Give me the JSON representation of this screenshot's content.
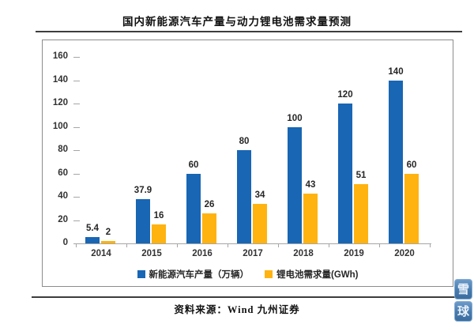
{
  "title": "国内新能源汽车产量与动力锂电池需求量预测",
  "source": "资料来源：Wind  九州证券",
  "watermark": {
    "top_char": "雪",
    "bottom_char": "球"
  },
  "colors": {
    "vehicle_bar": "#1866b4",
    "battery_bar": "#ffb310",
    "axis": "#a6a6a6",
    "frame_border": "#8c8c8c",
    "rule": "#3d3d3d",
    "watermark_blue": "#477aad"
  },
  "chart_data": {
    "type": "bar",
    "title": "国内新能源汽车产量与动力锂电池需求量预测",
    "categories": [
      "2014",
      "2015",
      "2016",
      "2017",
      "2018",
      "2019",
      "2020"
    ],
    "series": [
      {
        "name": "新能源汽车产量（万辆）",
        "color": "#1866b4",
        "values": [
          5.4,
          37.9,
          60,
          80,
          100,
          120,
          140
        ]
      },
      {
        "name": "锂电池需求量(GWh)",
        "color": "#ffb310",
        "values": [
          2,
          16,
          26,
          34,
          43,
          51,
          60
        ]
      }
    ],
    "ylim": [
      0,
      160
    ],
    "ytick_step": 20,
    "grid": false,
    "data_labels": true,
    "legend_position": "bottom",
    "xlabel": "",
    "ylabel": ""
  }
}
